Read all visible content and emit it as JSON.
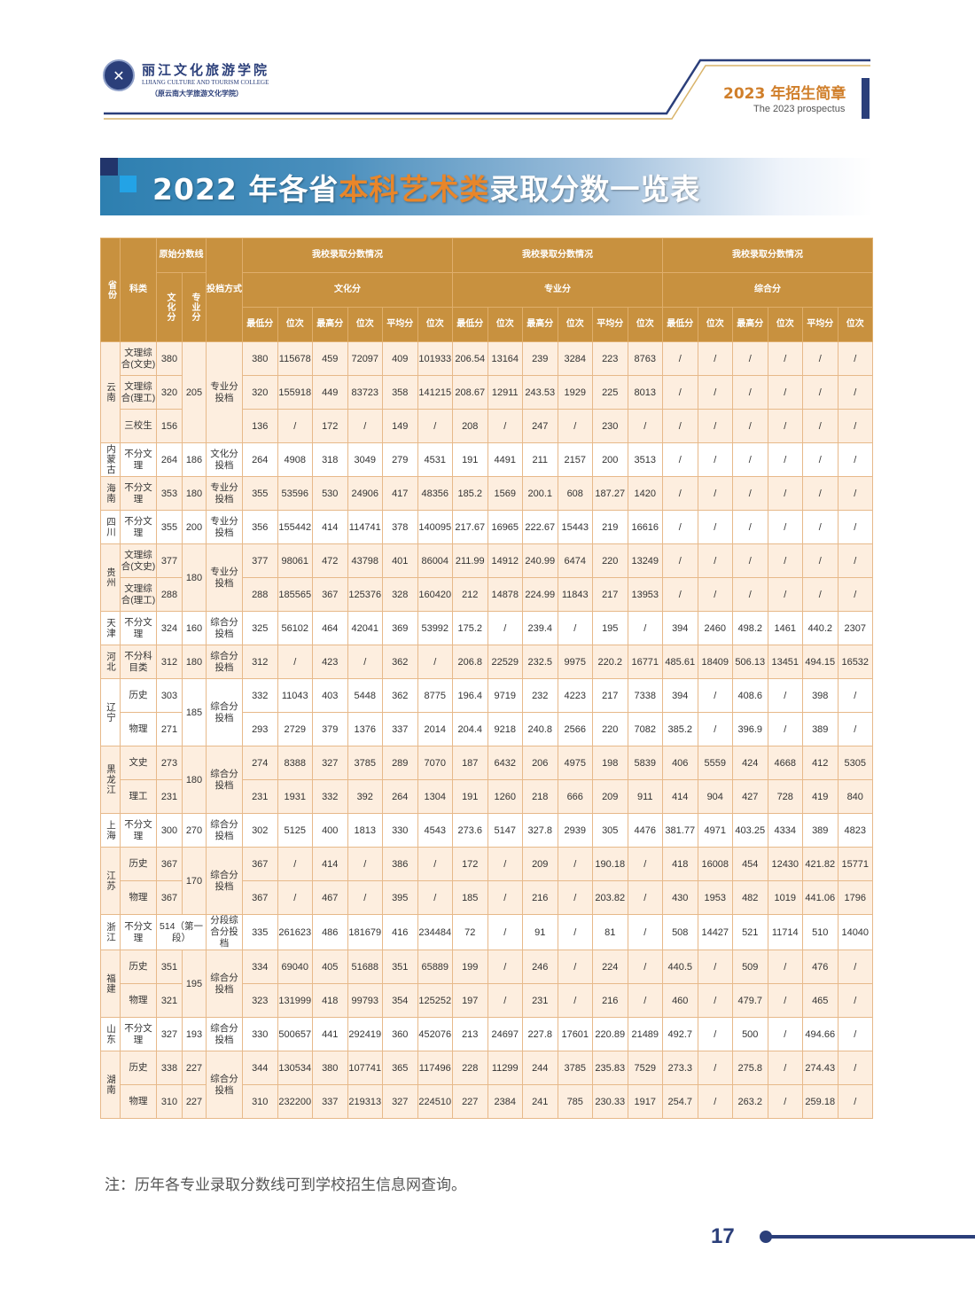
{
  "header": {
    "school_name_cn": "丽江文化旅游学院",
    "school_name_en": "LIJIANG CULTURE AND TOURISM COLLEGE",
    "school_former": "（原云南大学旅游文化学院）",
    "prospectus_cn": "2023 年招生简章",
    "prospectus_en": "The 2023 prospectus",
    "colors": {
      "navy": "#2b3f7a",
      "accent_orange": "#d07f2b",
      "gold": "#c8913f"
    }
  },
  "title": {
    "prefix": "2022 年各省",
    "highlight": "本科艺术类",
    "suffix": "录取分数一览表"
  },
  "table": {
    "headers": {
      "province": "省份",
      "subject": "科类",
      "original_line": "原始分数线",
      "culture": "文化分",
      "major": "专业分",
      "mode": "投档方式",
      "group_title": "我校录取分数情况",
      "groups": [
        "文化分",
        "专业分",
        "综合分"
      ],
      "sub": [
        "最低分",
        "位次",
        "最高分",
        "位次",
        "平均分",
        "位次"
      ]
    },
    "groups": [
      {
        "province": "云南",
        "mode": "专业分投档",
        "major_line": "205",
        "rows": [
          {
            "subject": "文理综合(文史)",
            "culture_line": "380",
            "values": [
              "380",
              "115678",
              "459",
              "72097",
              "409",
              "101933",
              "206.54",
              "13164",
              "239",
              "3284",
              "223",
              "8763",
              "/",
              "/",
              "/",
              "/",
              "/",
              "/"
            ]
          },
          {
            "subject": "文理综合(理工)",
            "culture_line": "320",
            "values": [
              "320",
              "155918",
              "449",
              "83723",
              "358",
              "141215",
              "208.67",
              "12911",
              "243.53",
              "1929",
              "225",
              "8013",
              "/",
              "/",
              "/",
              "/",
              "/",
              "/"
            ]
          },
          {
            "subject": "三校生",
            "culture_line": "156",
            "values": [
              "136",
              "/",
              "172",
              "/",
              "149",
              "/",
              "208",
              "/",
              "247",
              "/",
              "230",
              "/",
              "/",
              "/",
              "/",
              "/",
              "/",
              "/"
            ]
          }
        ]
      },
      {
        "province": "内蒙古",
        "mode": "文化分投档",
        "major_line": "186",
        "rows": [
          {
            "subject": "不分文理",
            "culture_line": "264",
            "values": [
              "264",
              "4908",
              "318",
              "3049",
              "279",
              "4531",
              "191",
              "4491",
              "211",
              "2157",
              "200",
              "3513",
              "/",
              "/",
              "/",
              "/",
              "/",
              "/"
            ]
          }
        ]
      },
      {
        "province": "海南",
        "mode": "专业分投档",
        "major_line": "180",
        "rows": [
          {
            "subject": "不分文理",
            "culture_line": "353",
            "values": [
              "355",
              "53596",
              "530",
              "24906",
              "417",
              "48356",
              "185.2",
              "1569",
              "200.1",
              "608",
              "187.27",
              "1420",
              "/",
              "/",
              "/",
              "/",
              "/",
              "/"
            ]
          }
        ]
      },
      {
        "province": "四川",
        "mode": "专业分投档",
        "major_line": "200",
        "rows": [
          {
            "subject": "不分文理",
            "culture_line": "355",
            "values": [
              "356",
              "155442",
              "414",
              "114741",
              "378",
              "140095",
              "217.67",
              "16965",
              "222.67",
              "15443",
              "219",
              "16616",
              "/",
              "/",
              "/",
              "/",
              "/",
              "/"
            ]
          }
        ]
      },
      {
        "province": "贵州",
        "mode": "专业分投档",
        "major_line": "180",
        "rows": [
          {
            "subject": "文理综合(文史)",
            "culture_line": "377",
            "values": [
              "377",
              "98061",
              "472",
              "43798",
              "401",
              "86004",
              "211.99",
              "14912",
              "240.99",
              "6474",
              "220",
              "13249",
              "/",
              "/",
              "/",
              "/",
              "/",
              "/"
            ]
          },
          {
            "subject": "文理综合(理工)",
            "culture_line": "288",
            "values": [
              "288",
              "185565",
              "367",
              "125376",
              "328",
              "160420",
              "212",
              "14878",
              "224.99",
              "11843",
              "217",
              "13953",
              "/",
              "/",
              "/",
              "/",
              "/",
              "/"
            ]
          }
        ]
      },
      {
        "province": "天津",
        "mode": "综合分投档",
        "major_line": "160",
        "rows": [
          {
            "subject": "不分文理",
            "culture_line": "324",
            "values": [
              "325",
              "56102",
              "464",
              "42041",
              "369",
              "53992",
              "175.2",
              "/",
              "239.4",
              "/",
              "195",
              "/",
              "394",
              "2460",
              "498.2",
              "1461",
              "440.2",
              "2307"
            ]
          }
        ]
      },
      {
        "province": "河北",
        "mode": "综合分投档",
        "major_line": "180",
        "rows": [
          {
            "subject": "不分科目类",
            "culture_line": "312",
            "values": [
              "312",
              "/",
              "423",
              "/",
              "362",
              "/",
              "206.8",
              "22529",
              "232.5",
              "9975",
              "220.2",
              "16771",
              "485.61",
              "18409",
              "506.13",
              "13451",
              "494.15",
              "16532"
            ]
          }
        ]
      },
      {
        "province": "辽宁",
        "mode": "综合分投档",
        "major_line": "185",
        "rows": [
          {
            "subject": "历史",
            "culture_line": "303",
            "values": [
              "332",
              "11043",
              "403",
              "5448",
              "362",
              "8775",
              "196.4",
              "9719",
              "232",
              "4223",
              "217",
              "7338",
              "394",
              "/",
              "408.6",
              "/",
              "398",
              "/"
            ]
          },
          {
            "subject": "物理",
            "culture_line": "271",
            "values": [
              "293",
              "2729",
              "379",
              "1376",
              "337",
              "2014",
              "204.4",
              "9218",
              "240.8",
              "2566",
              "220",
              "7082",
              "385.2",
              "/",
              "396.9",
              "/",
              "389",
              "/"
            ]
          }
        ]
      },
      {
        "province": "黑龙江",
        "mode": "综合分投档",
        "major_line": "180",
        "rows": [
          {
            "subject": "文史",
            "culture_line": "273",
            "values": [
              "274",
              "8388",
              "327",
              "3785",
              "289",
              "7070",
              "187",
              "6432",
              "206",
              "4975",
              "198",
              "5839",
              "406",
              "5559",
              "424",
              "4668",
              "412",
              "5305"
            ]
          },
          {
            "subject": "理工",
            "culture_line": "231",
            "values": [
              "231",
              "1931",
              "332",
              "392",
              "264",
              "1304",
              "191",
              "1260",
              "218",
              "666",
              "209",
              "911",
              "414",
              "904",
              "427",
              "728",
              "419",
              "840"
            ]
          }
        ]
      },
      {
        "province": "上海",
        "mode": "综合分投档",
        "major_line": "270",
        "rows": [
          {
            "subject": "不分文理",
            "culture_line": "300",
            "values": [
              "302",
              "5125",
              "400",
              "1813",
              "330",
              "4543",
              "273.6",
              "5147",
              "327.8",
              "2939",
              "305",
              "4476",
              "381.77",
              "4971",
              "403.25",
              "4334",
              "389",
              "4823"
            ]
          }
        ]
      },
      {
        "province": "江苏",
        "mode": "综合分投档",
        "major_line": "170",
        "rows": [
          {
            "subject": "历史",
            "culture_line": "367",
            "values": [
              "367",
              "/",
              "414",
              "/",
              "386",
              "/",
              "172",
              "/",
              "209",
              "/",
              "190.18",
              "/",
              "418",
              "16008",
              "454",
              "12430",
              "421.82",
              "15771"
            ]
          },
          {
            "subject": "物理",
            "culture_line": "367",
            "values": [
              "367",
              "/",
              "467",
              "/",
              "395",
              "/",
              "185",
              "/",
              "216",
              "/",
              "203.82",
              "/",
              "430",
              "1953",
              "482",
              "1019",
              "441.06",
              "1796"
            ]
          }
        ]
      },
      {
        "province": "浙江",
        "mode": "分段综合分投档",
        "combined_line": "514（第一段）",
        "rows": [
          {
            "subject": "不分文理",
            "values": [
              "335",
              "261623",
              "486",
              "181679",
              "416",
              "234484",
              "72",
              "/",
              "91",
              "/",
              "81",
              "/",
              "508",
              "14427",
              "521",
              "11714",
              "510",
              "14040"
            ]
          }
        ]
      },
      {
        "province": "福建",
        "mode": "综合分投档",
        "major_line": "195",
        "rows": [
          {
            "subject": "历史",
            "culture_line": "351",
            "values": [
              "334",
              "69040",
              "405",
              "51688",
              "351",
              "65889",
              "199",
              "/",
              "246",
              "/",
              "224",
              "/",
              "440.5",
              "/",
              "509",
              "/",
              "476",
              "/"
            ]
          },
          {
            "subject": "物理",
            "culture_line": "321",
            "values": [
              "323",
              "131999",
              "418",
              "99793",
              "354",
              "125252",
              "197",
              "/",
              "231",
              "/",
              "216",
              "/",
              "460",
              "/",
              "479.7",
              "/",
              "465",
              "/"
            ]
          }
        ]
      },
      {
        "province": "山东",
        "mode": "综合分投档",
        "major_line": "193",
        "rows": [
          {
            "subject": "不分文理",
            "culture_line": "327",
            "values": [
              "330",
              "500657",
              "441",
              "292419",
              "360",
              "452076",
              "213",
              "24697",
              "227.8",
              "17601",
              "220.89",
              "21489",
              "492.7",
              "/",
              "500",
              "/",
              "494.66",
              "/"
            ]
          }
        ]
      },
      {
        "province": "湖南",
        "mode": "综合分投档",
        "rows": [
          {
            "subject": "历史",
            "culture_line": "338",
            "major_line": "227",
            "values": [
              "344",
              "130534",
              "380",
              "107741",
              "365",
              "117496",
              "228",
              "11299",
              "244",
              "3785",
              "235.83",
              "7529",
              "273.3",
              "/",
              "275.8",
              "/",
              "274.43",
              "/"
            ]
          },
          {
            "subject": "物理",
            "culture_line": "310",
            "major_line": "227",
            "values": [
              "310",
              "232200",
              "337",
              "219313",
              "327",
              "224510",
              "227",
              "2384",
              "241",
              "785",
              "230.33",
              "1917",
              "254.7",
              "/",
              "263.2",
              "/",
              "259.18",
              "/"
            ]
          }
        ]
      }
    ]
  },
  "note": "注：历年各专业录取分数线可到学校招生信息网查询。",
  "page_number": "17"
}
